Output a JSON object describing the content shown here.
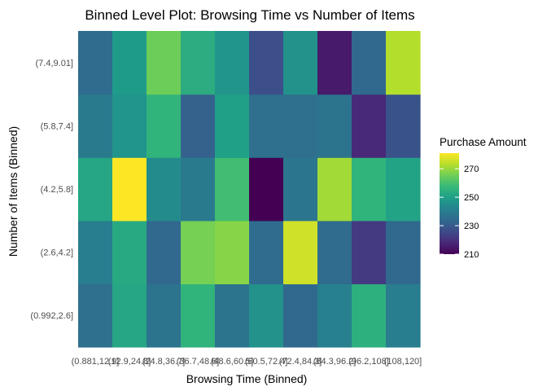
{
  "chart_data": {
    "type": "heatmap",
    "title": "Binned Level Plot: Browsing Time vs Number of Items",
    "xlabel": "Browsing Time (Binned)",
    "ylabel": "Number of Items (Binned)",
    "x_categories": [
      "(0.881,12.9]",
      "(12.9,24.8]",
      "(24.8,36.7]",
      "(36.7,48.6]",
      "(48.6,60.5]",
      "(60.5,72.4]",
      "(72.4,84.3]",
      "(84.3,96.2]",
      "(96.2,108]",
      "(108,120]"
    ],
    "y_categories": [
      "(0.992,2.6]",
      "(2.6,4.2]",
      "(4.2,5.8]",
      "(5.8,7.4]",
      "(7.4,9.01]"
    ],
    "values": [
      [
        236,
        252,
        237,
        256,
        237,
        246,
        234,
        241,
        255,
        240
      ],
      [
        240,
        253,
        234,
        266,
        268,
        235,
        276,
        235,
        222,
        234
      ],
      [
        252,
        281,
        244,
        239,
        259,
        210,
        238,
        271,
        256,
        251
      ],
      [
        239,
        247,
        256,
        232,
        250,
        236,
        236,
        237,
        218,
        228
      ],
      [
        235,
        249,
        265,
        254,
        247,
        227,
        246,
        215,
        234,
        273
      ]
    ],
    "legend": {
      "title": "Purchase Amount",
      "ticks": [
        210,
        230,
        250,
        270
      ],
      "range": [
        210,
        281
      ],
      "position": "right"
    },
    "colormap": "viridis",
    "grid": false
  }
}
